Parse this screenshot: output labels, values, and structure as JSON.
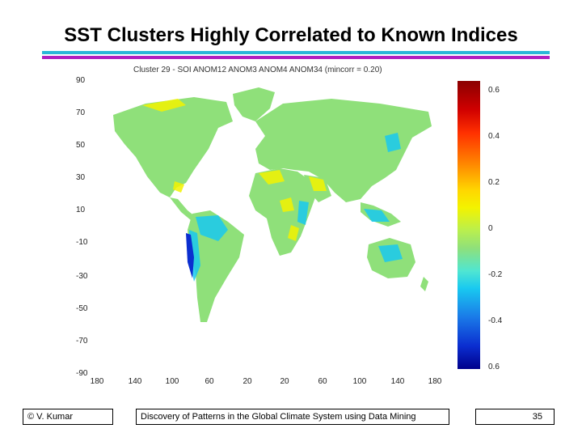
{
  "slide": {
    "title": "SST Clusters Highly Correlated to Known Indices"
  },
  "map": {
    "title": "Cluster 29 - SOI ANOM12 ANOM3 ANOM4 ANOM34 (mincorr = 0.20)",
    "y_ticks": [
      "90",
      "70",
      "50",
      "30",
      "10",
      "-10",
      "-30",
      "-50",
      "-70",
      "-90"
    ],
    "x_ticks": [
      "180",
      "140",
      "100",
      "60",
      "20",
      "20",
      "60",
      "100",
      "140",
      "180"
    ],
    "colorbar_ticks": [
      "0.6",
      "0.4",
      "0.2",
      "0",
      "-0.2",
      "-0.4",
      "0.6"
    ],
    "colors": {
      "land_base": "#8fe07a",
      "positive": "#f3f300",
      "negative": "#19c9f0",
      "strong_negative": "#0b2ed0"
    }
  },
  "footer": {
    "author": "© V. Kumar",
    "subtitle": "Discovery of Patterns in the Global Climate System using Data Mining",
    "page_number": "35"
  }
}
